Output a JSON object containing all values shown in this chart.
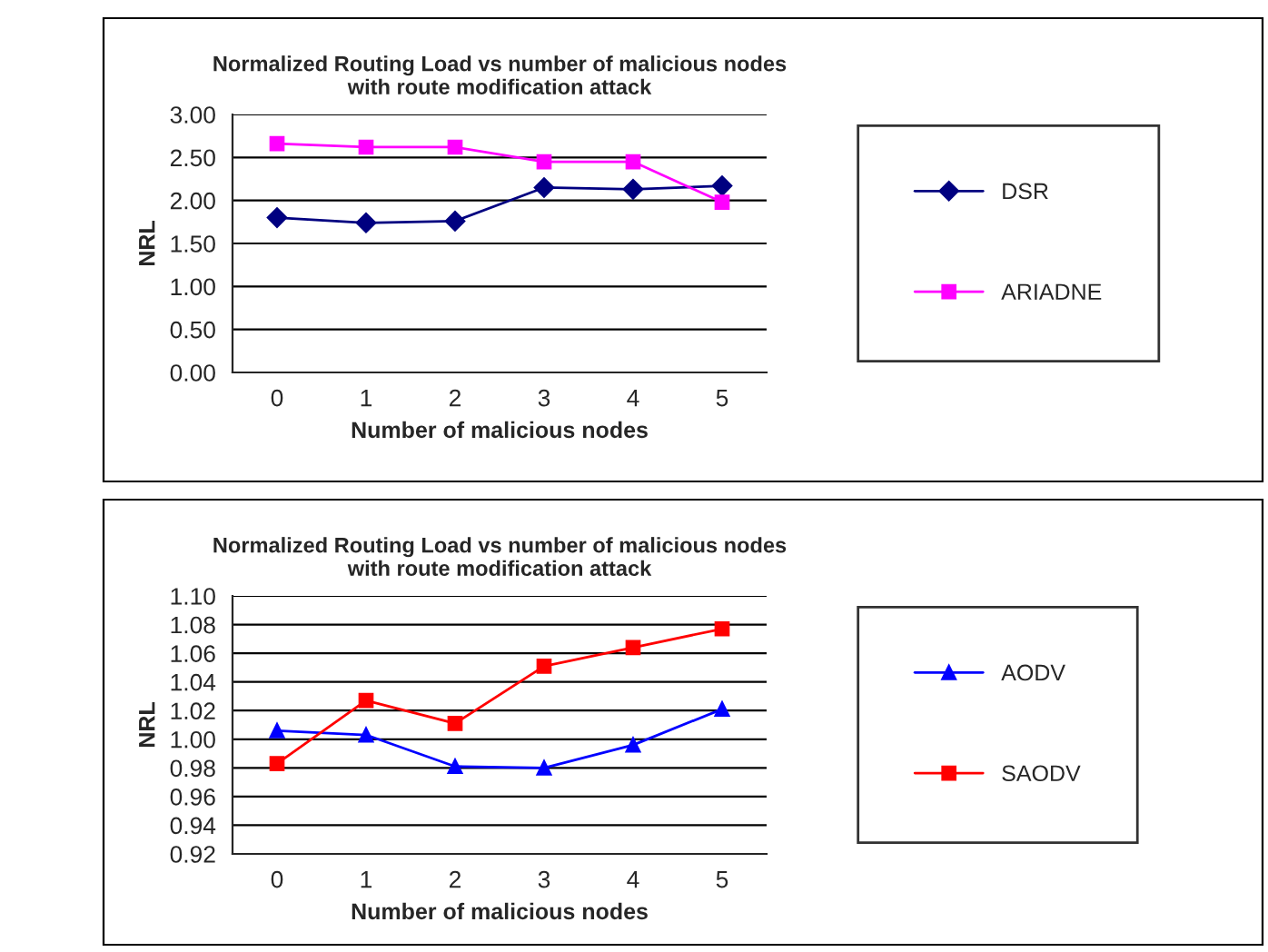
{
  "chart_data": [
    {
      "type": "line",
      "title": "Normalized Routing Load vs number of malicious nodes\nwith route modification attack",
      "xlabel": "Number of malicious nodes",
      "ylabel": "NRL",
      "categories": [
        "0",
        "1",
        "2",
        "3",
        "4",
        "5"
      ],
      "ylim": [
        0,
        3
      ],
      "yticks": [
        {
          "value": 0,
          "label": "0.00"
        },
        {
          "value": 0.5,
          "label": "0.50"
        },
        {
          "value": 1,
          "label": "1.00"
        },
        {
          "value": 1.5,
          "label": "1.50"
        },
        {
          "value": 2,
          "label": "2.00"
        },
        {
          "value": 2.5,
          "label": "2.50"
        },
        {
          "value": 3,
          "label": "3.00"
        }
      ],
      "grid": "y",
      "legend": "right",
      "series": [
        {
          "name": "DSR",
          "color": "#000080",
          "marker": "diamond",
          "values": [
            1.8,
            1.74,
            1.76,
            2.15,
            2.13,
            2.17
          ]
        },
        {
          "name": "ARIADNE",
          "color": "#ff00ff",
          "marker": "square",
          "values": [
            2.66,
            2.62,
            2.62,
            2.45,
            2.45,
            1.98
          ]
        }
      ]
    },
    {
      "type": "line",
      "title": "Normalized Routing Load vs number of malicious nodes\nwith route modification attack",
      "xlabel": "Number of malicious nodes",
      "ylabel": "NRL",
      "categories": [
        "0",
        "1",
        "2",
        "3",
        "4",
        "5"
      ],
      "ylim": [
        0.92,
        1.1
      ],
      "yticks": [
        {
          "value": 0.92,
          "label": "0.92"
        },
        {
          "value": 0.94,
          "label": "0.94"
        },
        {
          "value": 0.96,
          "label": "0.96"
        },
        {
          "value": 0.98,
          "label": "0.98"
        },
        {
          "value": 1.0,
          "label": "1.00"
        },
        {
          "value": 1.02,
          "label": "1.02"
        },
        {
          "value": 1.04,
          "label": "1.04"
        },
        {
          "value": 1.06,
          "label": "1.06"
        },
        {
          "value": 1.08,
          "label": "1.08"
        },
        {
          "value": 1.1,
          "label": "1.10"
        }
      ],
      "grid": "y",
      "legend": "right",
      "series": [
        {
          "name": "AODV",
          "color": "#0000ff",
          "marker": "triangle",
          "values": [
            1.006,
            1.003,
            0.981,
            0.98,
            0.996,
            1.021
          ]
        },
        {
          "name": "SAODV",
          "color": "#ff0000",
          "marker": "square",
          "values": [
            0.983,
            1.027,
            1.011,
            1.051,
            1.064,
            1.077
          ]
        }
      ]
    }
  ]
}
